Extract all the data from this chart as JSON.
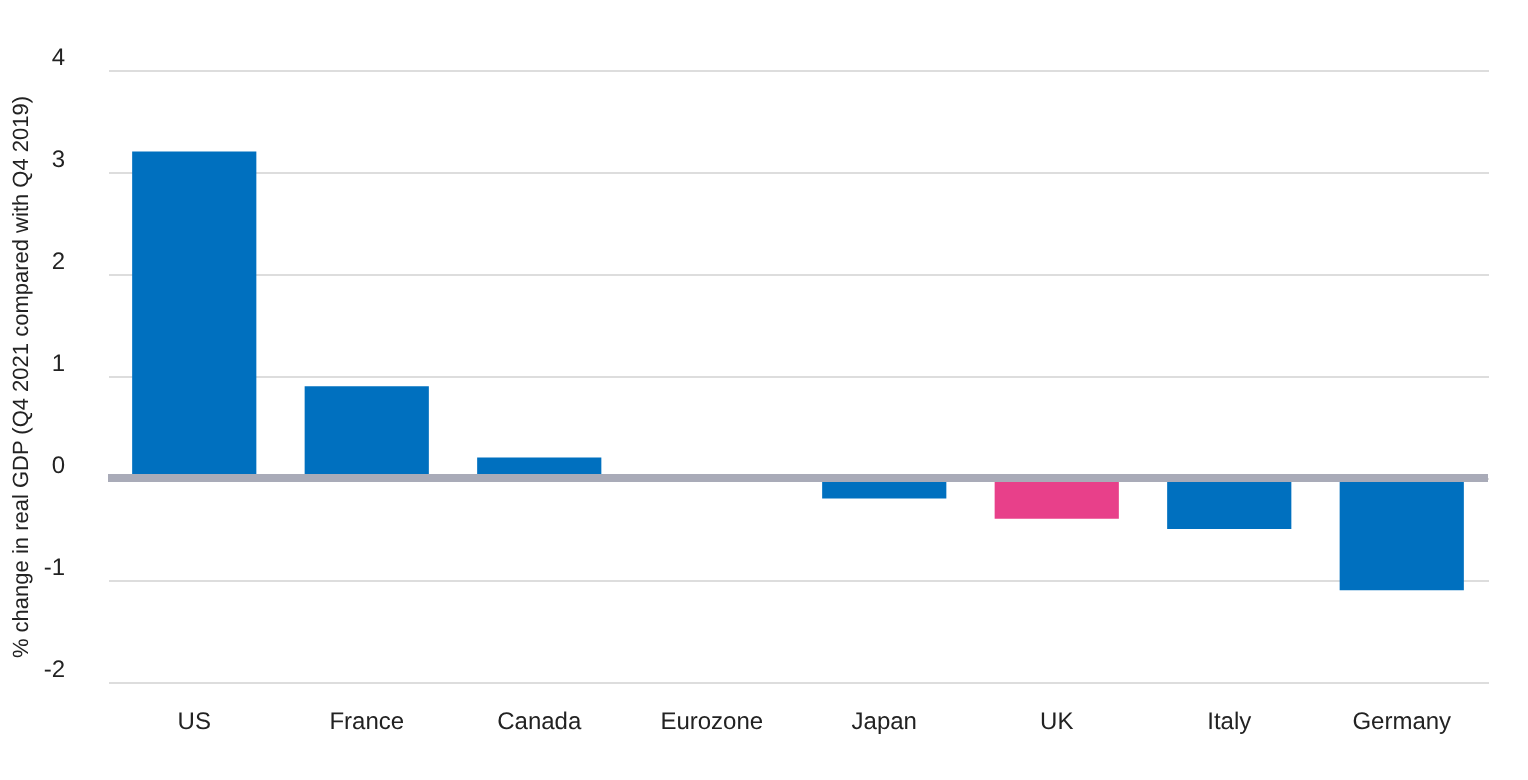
{
  "chart_data": {
    "type": "bar",
    "ylabel": "% change in real GDP (Q4 2021 compared with Q4 2019)",
    "categories": [
      "US",
      "France",
      "Canada",
      "Eurozone",
      "Japan",
      "UK",
      "Italy",
      "Germany"
    ],
    "values": [
      3.2,
      0.9,
      0.2,
      0,
      -0.2,
      -0.4,
      -0.5,
      -1.1
    ],
    "colors": [
      "#0070bf",
      "#0070bf",
      "#0070bf",
      "#0070bf",
      "#0070bf",
      "#e8408a",
      "#0070bf",
      "#0070bf"
    ],
    "ylim": [
      -2,
      4
    ],
    "yticks": [
      -2,
      -1,
      0,
      1,
      2,
      3,
      4
    ],
    "grid": "y",
    "ref_lines": [
      {
        "axis": "y",
        "value": 0,
        "color": "#a9abb8"
      }
    ]
  }
}
